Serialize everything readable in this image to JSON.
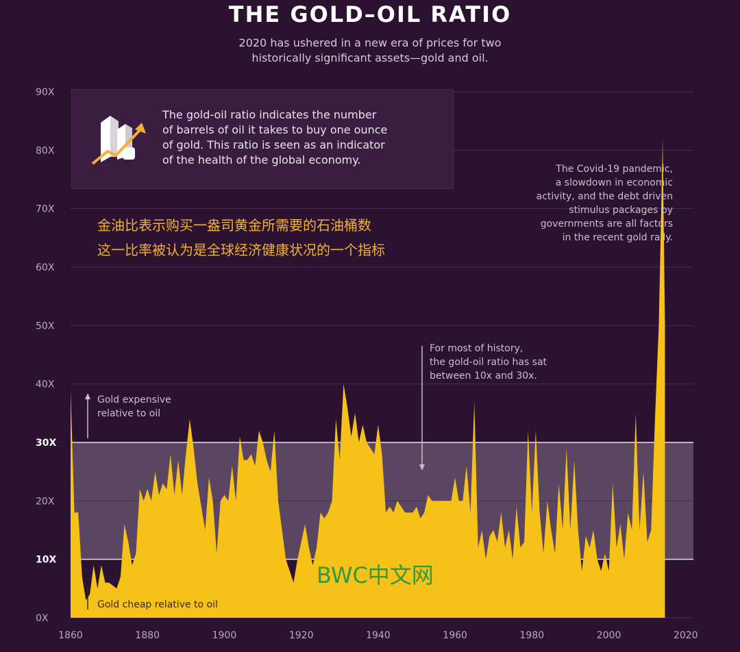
{
  "header": {
    "title": "THE GOLD–OIL RATIO",
    "subtitle_line1": "2020 has ushered in a new era of prices for two",
    "subtitle_line2": "historically significant assets—gold and oil."
  },
  "info_box": {
    "icon": "gold-bars-rising-arrow-icon",
    "line1": "The gold-oil ratio indicates the number",
    "line2": "of barrels of oil it takes to buy one ounce",
    "line3": "of gold. This ratio is seen as an indicator",
    "line4": "of the health of the global economy."
  },
  "chinese_text": {
    "line1": "金油比表示购买一盎司黄金所需要的石油桶数",
    "line2": "这一比率被认为是全球经济健康状况的一个指标"
  },
  "annotations": {
    "covid_line1": "The Covid-19 pandemic,",
    "covid_line2": "a slowdown in economic",
    "covid_line3": "activity, and the debt driven",
    "covid_line4": "stimulus packages by",
    "covid_line5": "governments are all factors",
    "covid_line6": "in the recent gold rally.",
    "history_line1": "For most of history,",
    "history_line2": "the gold-oil ratio has sat",
    "history_line3": "between 10x and 30x.",
    "expensive_line1": "Gold expensive",
    "expensive_line2": "relative to oil",
    "cheap": "Gold cheap relative to oil"
  },
  "watermark": "BWC中文网",
  "colors": {
    "background": "#2a1230",
    "band": "#5a4660",
    "area": "#f6c21a",
    "grid": "#4a2f52"
  },
  "chart_data": {
    "type": "area",
    "title": "THE GOLD–OIL RATIO",
    "xlabel": "",
    "ylabel": "",
    "xlim": [
      1860,
      2022
    ],
    "ylim": [
      0,
      90
    ],
    "x_ticks": [
      "1860",
      "1880",
      "1900",
      "1920",
      "1940",
      "1960",
      "1980",
      "2000",
      "2020"
    ],
    "y_ticks": [
      "0X",
      "10X",
      "20X",
      "30X",
      "40X",
      "50X",
      "60X",
      "70X",
      "80X",
      "90X"
    ],
    "y_tick_values": [
      0,
      10,
      20,
      30,
      40,
      50,
      60,
      70,
      80,
      90
    ],
    "highlight_band": [
      10,
      30
    ],
    "grid": true,
    "series": [
      {
        "points": [
          [
            1860,
            39
          ],
          [
            1861,
            18
          ],
          [
            1862,
            18
          ],
          [
            1863,
            7
          ],
          [
            1864,
            3
          ],
          [
            1865,
            4
          ],
          [
            1866,
            9
          ],
          [
            1867,
            5
          ],
          [
            1868,
            9
          ],
          [
            1869,
            6
          ],
          [
            1870,
            6
          ],
          [
            1872,
            5
          ],
          [
            1873,
            7
          ],
          [
            1874,
            16
          ],
          [
            1875,
            13
          ],
          [
            1876,
            9
          ],
          [
            1877,
            11
          ],
          [
            1878,
            22
          ],
          [
            1879,
            20
          ],
          [
            1880,
            22
          ],
          [
            1881,
            20
          ],
          [
            1882,
            25
          ],
          [
            1883,
            21
          ],
          [
            1884,
            23
          ],
          [
            1885,
            22
          ],
          [
            1886,
            28
          ],
          [
            1887,
            21
          ],
          [
            1888,
            27
          ],
          [
            1889,
            21
          ],
          [
            1890,
            28
          ],
          [
            1891,
            34
          ],
          [
            1892,
            29
          ],
          [
            1893,
            23
          ],
          [
            1894,
            19
          ],
          [
            1895,
            15
          ],
          [
            1896,
            24
          ],
          [
            1897,
            20
          ],
          [
            1898,
            11
          ],
          [
            1899,
            20
          ],
          [
            1900,
            21
          ],
          [
            1901,
            20
          ],
          [
            1902,
            26
          ],
          [
            1903,
            20
          ],
          [
            1904,
            31
          ],
          [
            1905,
            27
          ],
          [
            1906,
            27
          ],
          [
            1907,
            28
          ],
          [
            1908,
            26
          ],
          [
            1909,
            32
          ],
          [
            1910,
            30
          ],
          [
            1911,
            27
          ],
          [
            1912,
            25
          ],
          [
            1913,
            32
          ],
          [
            1914,
            20
          ],
          [
            1915,
            15
          ],
          [
            1916,
            10
          ],
          [
            1917,
            8
          ],
          [
            1918,
            6
          ],
          [
            1919,
            10
          ],
          [
            1920,
            13
          ],
          [
            1921,
            16
          ],
          [
            1922,
            12
          ],
          [
            1923,
            9
          ],
          [
            1924,
            12
          ],
          [
            1925,
            18
          ],
          [
            1926,
            17
          ],
          [
            1927,
            18
          ],
          [
            1928,
            20
          ],
          [
            1929,
            34
          ],
          [
            1930,
            27
          ],
          [
            1931,
            40
          ],
          [
            1932,
            36
          ],
          [
            1933,
            31
          ],
          [
            1934,
            35
          ],
          [
            1935,
            30
          ],
          [
            1936,
            33
          ],
          [
            1937,
            30
          ],
          [
            1938,
            29
          ],
          [
            1939,
            28
          ],
          [
            1940,
            33
          ],
          [
            1941,
            28
          ],
          [
            1942,
            18
          ],
          [
            1943,
            19
          ],
          [
            1944,
            18
          ],
          [
            1945,
            20
          ],
          [
            1946,
            19
          ],
          [
            1947,
            18
          ],
          [
            1948,
            18
          ],
          [
            1949,
            18
          ],
          [
            1950,
            19
          ],
          [
            1951,
            17
          ],
          [
            1952,
            18
          ],
          [
            1953,
            21
          ],
          [
            1954,
            20
          ],
          [
            1955,
            20
          ],
          [
            1956,
            20
          ],
          [
            1957,
            20
          ],
          [
            1958,
            20
          ],
          [
            1959,
            20
          ],
          [
            1960,
            24
          ],
          [
            1961,
            20
          ],
          [
            1962,
            20
          ],
          [
            1963,
            26
          ],
          [
            1964,
            18
          ],
          [
            1965,
            37
          ],
          [
            1966,
            12
          ],
          [
            1967,
            15
          ],
          [
            1968,
            10
          ],
          [
            1969,
            14
          ],
          [
            1970,
            15
          ],
          [
            1971,
            13
          ],
          [
            1972,
            18
          ],
          [
            1973,
            12
          ],
          [
            1974,
            15
          ],
          [
            1975,
            10
          ],
          [
            1976,
            19
          ],
          [
            1977,
            12
          ],
          [
            1978,
            13
          ],
          [
            1979,
            32
          ],
          [
            1980,
            18
          ],
          [
            1981,
            32
          ],
          [
            1982,
            18
          ],
          [
            1983,
            11
          ],
          [
            1984,
            20
          ],
          [
            1985,
            15
          ],
          [
            1986,
            11
          ],
          [
            1987,
            23
          ],
          [
            1988,
            15
          ],
          [
            1989,
            29
          ],
          [
            1990,
            15
          ],
          [
            1991,
            27
          ],
          [
            1992,
            15
          ],
          [
            1993,
            8
          ],
          [
            1994,
            14
          ],
          [
            1995,
            12
          ],
          [
            1996,
            15
          ],
          [
            1997,
            10
          ],
          [
            1998,
            8
          ],
          [
            1999,
            11
          ],
          [
            2000,
            8
          ],
          [
            2001,
            23
          ],
          [
            2002,
            12
          ],
          [
            2003,
            16
          ],
          [
            2004,
            10
          ],
          [
            2005,
            18
          ],
          [
            2006,
            15
          ],
          [
            2007,
            35
          ],
          [
            2008,
            15
          ],
          [
            2009,
            25
          ],
          [
            2010,
            13
          ],
          [
            2011,
            15
          ],
          [
            2012,
            34
          ],
          [
            2013,
            50
          ],
          [
            2014,
            82
          ],
          [
            2014.6,
            50
          ]
        ]
      }
    ]
  }
}
